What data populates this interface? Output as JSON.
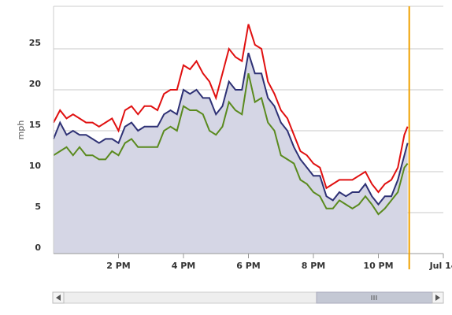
{
  "chart_data": {
    "type": "line",
    "y_label": "mph",
    "x": [
      12.0,
      12.2,
      12.4,
      12.6,
      12.8,
      13.0,
      13.2,
      13.4,
      13.6,
      13.8,
      14.0,
      14.2,
      14.4,
      14.6,
      14.8,
      15.0,
      15.2,
      15.4,
      15.6,
      15.8,
      16.0,
      16.2,
      16.4,
      16.6,
      16.8,
      17.0,
      17.2,
      17.4,
      17.6,
      17.8,
      18.0,
      18.2,
      18.4,
      18.6,
      18.8,
      19.0,
      19.2,
      19.4,
      19.6,
      19.8,
      20.0,
      20.2,
      20.4,
      20.6,
      20.8,
      21.0,
      21.2,
      21.4,
      21.6,
      21.8,
      22.0,
      22.2,
      22.4,
      22.6,
      22.8,
      22.9
    ],
    "series": [
      {
        "color": "#2e3175",
        "fill": "#d5d6e5",
        "values": [
          14,
          16,
          14.5,
          15,
          14.5,
          14.5,
          14,
          13.5,
          14,
          14,
          13.5,
          15.5,
          16,
          15,
          15.5,
          15.5,
          15.5,
          17,
          17.5,
          17,
          20,
          19.5,
          20,
          19,
          19,
          17,
          18,
          21,
          20,
          20,
          24.5,
          22,
          22,
          19,
          18,
          16,
          15,
          13,
          11.5,
          10.5,
          9.5,
          9.5,
          7,
          6.5,
          7.5,
          7,
          7.5,
          7.5,
          8.5,
          7,
          6,
          7,
          7,
          9,
          12,
          13.5
        ]
      },
      {
        "color": "#e01010",
        "values": [
          16,
          17.5,
          16.5,
          17,
          16.5,
          16,
          16,
          15.5,
          16,
          16.5,
          15,
          17.5,
          18,
          17,
          18,
          18,
          17.5,
          19.5,
          20,
          20,
          23,
          22.5,
          23.5,
          22,
          21,
          19,
          22,
          25,
          24,
          23.5,
          28,
          25.5,
          25,
          21,
          19.5,
          17.5,
          16.5,
          14.5,
          12.5,
          12,
          11,
          10.5,
          8,
          8.5,
          9,
          9,
          9,
          9.5,
          10,
          8.5,
          7.5,
          8.5,
          9,
          10.5,
          14.5,
          15.5
        ]
      },
      {
        "color": "#5a8a1e",
        "values": [
          12,
          12.5,
          13,
          12,
          13,
          12,
          12,
          11.5,
          11.5,
          12.5,
          12,
          13.5,
          14,
          13,
          13,
          13,
          13,
          15,
          15.5,
          15,
          18,
          17.5,
          17.5,
          17,
          15,
          14.5,
          15.5,
          18.5,
          17.5,
          17,
          22,
          18.5,
          19,
          16,
          15,
          12,
          11.5,
          11,
          9,
          8.5,
          7.5,
          7,
          5.5,
          5.5,
          6.5,
          6,
          5.5,
          6,
          7,
          6,
          4.8,
          5.5,
          6.5,
          7.5,
          10.5,
          11
        ]
      }
    ],
    "xlim": [
      12,
      24
    ],
    "xticks": [
      {
        "value": 14,
        "label": "2 PM"
      },
      {
        "value": 16,
        "label": "4 PM"
      },
      {
        "value": 18,
        "label": "6 PM"
      },
      {
        "value": 20,
        "label": "8 PM"
      },
      {
        "value": 22,
        "label": "10 PM"
      },
      {
        "value": 24,
        "label": "Jul 14"
      }
    ],
    "ylim": [
      0,
      30
    ],
    "yticks": [
      0,
      5,
      10,
      15,
      20,
      25
    ],
    "grid": true,
    "current_time": {
      "value": 22.95,
      "color": "#f0a000"
    }
  }
}
